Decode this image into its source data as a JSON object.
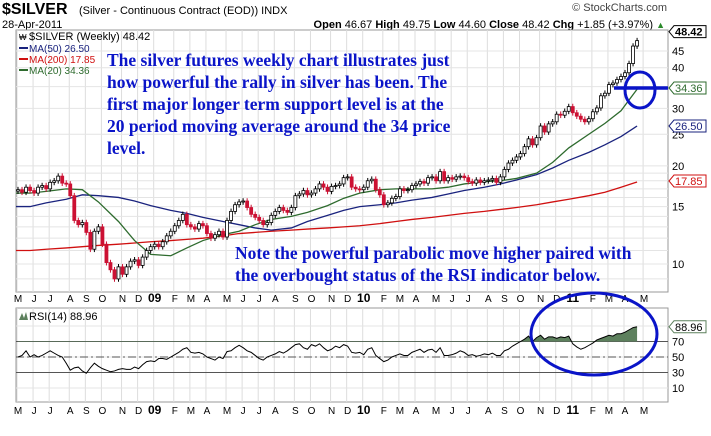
{
  "header": {
    "symbol": "$SILVER",
    "description": "(Silver - Continuous Contract (EOD)) INDX",
    "date": "28-Apr-2011",
    "open_label": "Open",
    "open": "46.67",
    "high_label": "High",
    "high": "49.75",
    "low_label": "Low",
    "low": "44.60",
    "close_label": "Close",
    "close": "48.42",
    "chg_label": "Chg",
    "chg": "+1.85 (+3.97%)",
    "chg_icon": "up-triangle-icon",
    "copyright": "© StockCharts.com"
  },
  "legend": {
    "price": "$SILVER (Weekly) 48.42",
    "ma50": "MA(50) 26.50",
    "ma200": "MA(200) 17.85",
    "ma20": "MA(20) 34.36",
    "rsi": "RSI(14) 88.96"
  },
  "annotations": {
    "note1": [
      "The silver futures weekly chart illustrates just",
      "how powerful the rally in silver has been. The",
      "first major longer term support level is at the",
      "20 period moving average around the 34 price",
      "level."
    ],
    "note2": [
      "Note the powerful parabolic move higher paired with",
      "the overbought status of the RSI indicator below."
    ]
  },
  "colors": {
    "up": "#000000",
    "down": "#cc1133",
    "ma50": "#1a237e",
    "ma200": "#d01010",
    "ma20": "#2e6b2e",
    "annotation": "#0a14c8",
    "rsi_fill": "#5d805d"
  },
  "chart_data": [
    {
      "type": "candlestick",
      "title": "$SILVER (Weekly) 48.42",
      "scale": "log",
      "ylim": [
        8.5,
        50
      ],
      "y_ticks": [
        "10",
        "15",
        "20",
        "25",
        "30",
        "40",
        "45"
      ],
      "price_labels": {
        "last": "48.42",
        "ma20": "34.36",
        "ma50": "26.50",
        "ma200": "17.85"
      },
      "x_ticks": [
        "M",
        "J",
        "J",
        "A",
        "S",
        "O",
        "N",
        "D",
        "09",
        "F",
        "M",
        "A",
        "M",
        "J",
        "J",
        "A",
        "S",
        "O",
        "N",
        "D",
        "10",
        "F",
        "M",
        "A",
        "M",
        "J",
        "J",
        "A",
        "S",
        "O",
        "N",
        "D",
        "11",
        "F",
        "M",
        "A",
        "M"
      ],
      "weekly_close": {
        "2008-05": [
          16.9,
          16.6,
          17.2,
          16.8
        ],
        "2008-06": [
          16.5,
          17.2,
          17.4,
          17.0
        ],
        "2008-07": [
          17.8,
          18.0,
          18.6,
          17.7,
          17.6
        ],
        "2008-08": [
          16.2,
          13.6,
          13.2,
          13.4
        ],
        "2008-09": [
          12.5,
          11.1,
          12.6,
          13.0
        ],
        "2008-10": [
          11.5,
          10.1,
          9.6,
          9.0,
          9.8
        ],
        "2008-11": [
          9.3,
          9.8,
          10.2,
          10.3
        ],
        "2008-12": [
          9.9,
          10.5,
          11.0,
          11.3
        ],
        "2009-01": [
          11.5,
          11.3,
          11.7,
          12.2,
          12.6
        ],
        "2009-02": [
          13.1,
          13.6,
          14.2,
          13.2
        ],
        "2009-03": [
          13.0,
          12.8,
          13.3,
          13.1
        ],
        "2009-04": [
          12.4,
          12.0,
          12.3,
          12.6,
          12.1
        ],
        "2009-05": [
          13.6,
          14.5,
          15.2,
          15.5
        ],
        "2009-06": [
          15.6,
          14.9,
          14.2,
          13.9
        ],
        "2009-07": [
          13.6,
          13.2,
          13.4,
          14.1
        ],
        "2009-08": [
          14.5,
          14.9,
          14.6,
          14.4,
          14.9
        ],
        "2009-09": [
          16.2,
          16.4,
          16.8,
          16.3
        ],
        "2009-10": [
          16.5,
          17.0,
          17.6,
          17.2,
          16.7
        ],
        "2009-11": [
          17.3,
          17.4,
          17.6,
          18.4
        ],
        "2009-12": [
          18.5,
          17.2,
          17.0,
          16.9
        ],
        "2010-01": [
          17.2,
          18.0,
          18.2,
          16.9,
          16.3
        ],
        "2010-02": [
          15.2,
          15.4,
          15.9,
          16.1
        ],
        "2010-03": [
          17.0,
          16.8,
          16.9,
          17.4
        ],
        "2010-04": [
          17.6,
          17.9,
          17.7,
          18.4,
          18.5
        ],
        "2010-05": [
          18.0,
          19.2,
          18.0,
          18.4
        ],
        "2010-06": [
          18.2,
          18.5,
          18.6,
          18.4
        ],
        "2010-07": [
          17.9,
          17.7,
          18.1,
          17.8,
          18.0
        ],
        "2010-08": [
          18.1,
          18.3,
          17.8,
          18.5
        ],
        "2010-09": [
          19.5,
          20.4,
          20.8,
          21.3
        ],
        "2010-10": [
          21.8,
          22.9,
          24.2,
          23.2,
          24.4
        ],
        "2010-11": [
          26.5,
          25.4,
          26.9,
          27.3
        ],
        "2010-12": [
          28.8,
          28.6,
          29.4,
          30.4
        ],
        "2011-01": [
          29.1,
          28.4,
          27.8,
          27.3,
          27.9
        ],
        "2011-02": [
          29.3,
          30.1,
          32.8,
          33.4
        ],
        "2011-03": [
          35.5,
          35.9,
          36.8,
          37.6
        ],
        "2011-04": [
          38.6,
          41.2,
          46.6,
          48.42
        ]
      },
      "ma20_monthly": [
        16.5,
        16.7,
        17.0,
        16.9,
        15.5,
        13.5,
        11.8,
        10.7,
        10.6,
        11.2,
        11.8,
        12.3,
        12.6,
        13.2,
        13.7,
        14.0,
        14.4,
        15.1,
        15.9,
        16.5,
        16.9,
        17.0,
        17.0,
        17.0,
        17.2,
        17.6,
        17.9,
        18.0,
        18.3,
        19.0,
        20.5,
        22.7,
        25.0,
        27.0,
        29.5,
        34.36
      ],
      "ma50_monthly": [
        15.0,
        15.4,
        15.8,
        16.3,
        16.2,
        16.0,
        15.6,
        15.1,
        14.6,
        14.3,
        13.9,
        13.5,
        13.2,
        12.9,
        12.7,
        12.9,
        13.5,
        14.1,
        14.6,
        15.0,
        15.2,
        15.4,
        15.7,
        16.0,
        16.4,
        16.8,
        17.2,
        17.6,
        18.1,
        18.8,
        19.7,
        20.8,
        22.0,
        23.2,
        24.6,
        26.5
      ],
      "ma200_monthly": [
        11.0,
        11.1,
        11.2,
        11.3,
        11.4,
        11.5,
        11.6,
        11.7,
        11.8,
        11.9,
        12.0,
        12.2,
        12.4,
        12.5,
        12.6,
        12.7,
        12.8,
        12.9,
        13.0,
        13.1,
        13.3,
        13.5,
        13.7,
        13.9,
        14.1,
        14.3,
        14.5,
        14.7,
        14.9,
        15.2,
        15.5,
        15.8,
        16.2,
        16.6,
        17.2,
        17.85
      ]
    },
    {
      "type": "line",
      "title": "RSI(14) 88.96",
      "ylim": [
        0,
        100
      ],
      "y_ticks": [
        "10",
        "30",
        "50",
        "70"
      ],
      "last_label": "88.96",
      "reference_lines": [
        30,
        50,
        70
      ],
      "weekly_rsi": {
        "2008-05": [
          50,
          52,
          58,
          50
        ],
        "2008-06": [
          53,
          50,
          52,
          55
        ],
        "2008-07": [
          58,
          55,
          52,
          50,
          42
        ],
        "2008-08": [
          33,
          36,
          37,
          32
        ],
        "2008-09": [
          29,
          36,
          42,
          38
        ],
        "2008-10": [
          35,
          33,
          31,
          32,
          34
        ],
        "2008-11": [
          35,
          34,
          34,
          37
        ],
        "2008-12": [
          35,
          40,
          44,
          45
        ],
        "2009-01": [
          44,
          48,
          48,
          47,
          50
        ],
        "2009-02": [
          53,
          56,
          60,
          62
        ],
        "2009-03": [
          56,
          55,
          56,
          54
        ],
        "2009-04": [
          50,
          48,
          46,
          50,
          48
        ],
        "2009-05": [
          57,
          58,
          62,
          65
        ],
        "2009-06": [
          62,
          58,
          56,
          52
        ],
        "2009-07": [
          48,
          46,
          50,
          52
        ],
        "2009-08": [
          54,
          57,
          55,
          58,
          62
        ],
        "2009-09": [
          66,
          67,
          62,
          60
        ],
        "2009-10": [
          66,
          64,
          67,
          62,
          58
        ],
        "2009-11": [
          60,
          64,
          62,
          66
        ],
        "2009-12": [
          64,
          56,
          55,
          56
        ],
        "2010-01": [
          53,
          60,
          62,
          52,
          48
        ],
        "2010-02": [
          44,
          46,
          50,
          52
        ],
        "2010-03": [
          54,
          52,
          52,
          56
        ],
        "2010-04": [
          58,
          60,
          56,
          59,
          60
        ],
        "2010-05": [
          56,
          62,
          52,
          52
        ],
        "2010-06": [
          53,
          55,
          58,
          56
        ],
        "2010-07": [
          52,
          53,
          51,
          52,
          54
        ],
        "2010-08": [
          53,
          55,
          52,
          52
        ],
        "2010-09": [
          58,
          60,
          64,
          67
        ],
        "2010-10": [
          70,
          73,
          77,
          70,
          75
        ],
        "2010-11": [
          78,
          73,
          76,
          76
        ],
        "2010-12": [
          74,
          76,
          75,
          77
        ],
        "2011-01": [
          67,
          63,
          60,
          62,
          65
        ],
        "2011-02": [
          68,
          72,
          74,
          76
        ],
        "2011-03": [
          78,
          77,
          80,
          80
        ],
        "2011-04": [
          82,
          85,
          88,
          88.96
        ]
      }
    }
  ]
}
